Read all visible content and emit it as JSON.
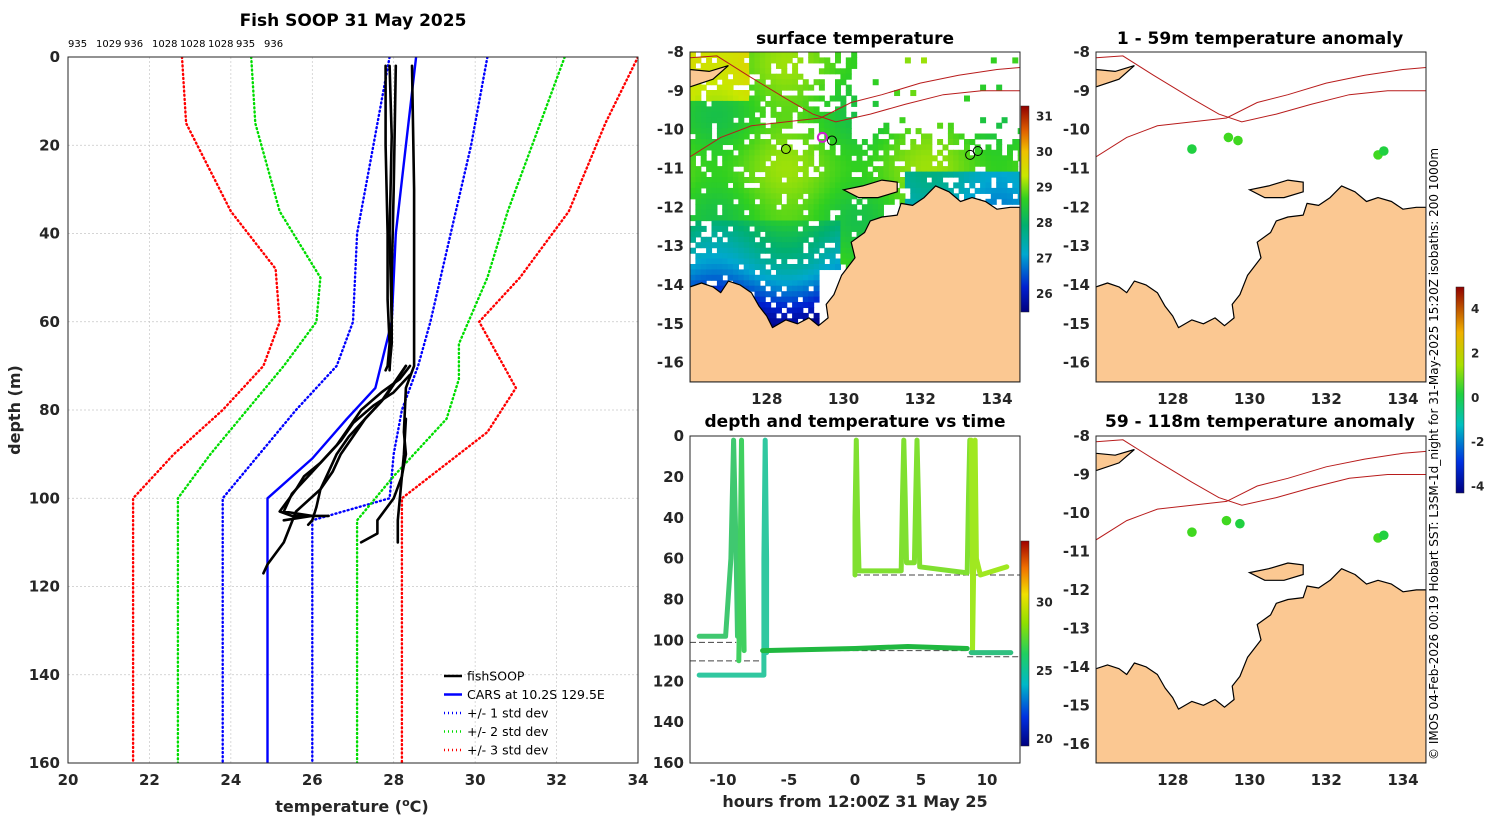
{
  "colors": {
    "black": "#000000",
    "cars": "#0000ff",
    "sd1": "#0000ff",
    "sd2": "#00ee00",
    "sd3": "#ff0000",
    "land": "#fbc892",
    "isobath": "#b81c1c"
  },
  "credit": "© IMOS 04-Feb-2026 00:19 Hobart SST: L3SM-1d_night for 31-May-2025 15:20Z isobaths: 200  1000m",
  "chart_data": [
    {
      "type": "line",
      "id": "profile",
      "title": "Fish SOOP 31 May 2025",
      "xlabel": "temperature (°C)",
      "ylabel": "depth (m)",
      "xlim": [
        20,
        34
      ],
      "ylim": [
        160,
        0
      ],
      "xticks": [
        "20",
        "22",
        "24",
        "26",
        "28",
        "30",
        "32",
        "34"
      ],
      "yticks": [
        "0",
        "20",
        "40",
        "60",
        "80",
        "100",
        "120",
        "140",
        "160"
      ],
      "top_labels": [
        "935",
        "1029",
        "936",
        "1028",
        "1028",
        "1028",
        "935",
        "936"
      ],
      "legend": [
        "fishSOOP",
        "CARS at 10.2S 129.5E",
        "+/- 1 std dev",
        "+/- 2 std dev",
        "+/- 3 std dev"
      ],
      "series": [
        {
          "name": "CARS",
          "style": "solid",
          "color": "#0000ff",
          "x": [
            28.55,
            28.3,
            28.05,
            27.95,
            27.55,
            26.85,
            26.0,
            24.9,
            24.9
          ],
          "y": [
            0,
            20,
            40,
            60,
            75,
            82,
            91,
            100,
            160
          ]
        },
        {
          "name": "-1",
          "style": "dot",
          "color": "#0000ff",
          "x": [
            27.9,
            27.5,
            27.1,
            27.0,
            26.6,
            25.6,
            24.7,
            23.8,
            23.8
          ],
          "y": [
            0,
            20,
            40,
            60,
            70,
            80,
            90,
            100,
            160
          ]
        },
        {
          "name": "+1",
          "style": "dot",
          "color": "#0000ff",
          "x": [
            30.3,
            29.9,
            29.4,
            28.9,
            28.6,
            28.2,
            28.0,
            27.9,
            26.0,
            26.0
          ],
          "y": [
            0,
            20,
            40,
            60,
            70,
            80,
            90,
            100,
            105,
            160
          ]
        },
        {
          "name": "-2",
          "style": "dot",
          "color": "#00dd00",
          "x": [
            24.5,
            24.6,
            25.2,
            26.2,
            26.1,
            25.3,
            24.4,
            23.5,
            22.7,
            22.7
          ],
          "y": [
            0,
            15,
            35,
            50,
            60,
            70,
            80,
            90,
            100,
            160
          ]
        },
        {
          "name": "+2",
          "style": "dot",
          "color": "#00dd00",
          "x": [
            32.2,
            31.6,
            30.8,
            30.3,
            29.6,
            29.6,
            29.3,
            28.0,
            27.1,
            27.1
          ],
          "y": [
            0,
            15,
            35,
            50,
            65,
            73,
            82,
            95,
            105,
            160
          ]
        },
        {
          "name": "-3",
          "style": "dot",
          "color": "#ff0000",
          "x": [
            22.8,
            22.9,
            24.0,
            25.1,
            25.2,
            24.8,
            23.8,
            22.6,
            21.6,
            21.6
          ],
          "y": [
            0,
            15,
            35,
            48,
            60,
            70,
            80,
            90,
            100,
            160
          ]
        },
        {
          "name": "+3",
          "style": "dot",
          "color": "#ff0000",
          "x": [
            34.0,
            33.2,
            32.3,
            31.1,
            30.1,
            31.0,
            30.3,
            28.2,
            28.2
          ],
          "y": [
            0,
            15,
            35,
            50,
            60,
            75,
            85,
            100,
            160
          ]
        },
        {
          "name": "fishSOOP A",
          "style": "thick",
          "color": "#000000",
          "x": [
            27.8,
            27.8,
            27.85,
            27.85,
            27.9,
            27.85,
            27.8
          ],
          "y": [
            2,
            20,
            40,
            55,
            65,
            70,
            71
          ]
        },
        {
          "name": "fishSOOP B",
          "style": "thick",
          "color": "#000000",
          "x": [
            27.9,
            27.95,
            27.9,
            27.95,
            27.9
          ],
          "y": [
            2,
            18,
            40,
            60,
            71
          ]
        },
        {
          "name": "fishSOOP C",
          "style": "thick",
          "color": "#000000",
          "x": [
            28.05,
            28.0,
            27.95,
            27.95,
            27.9
          ],
          "y": [
            2,
            30,
            50,
            65,
            70
          ]
        },
        {
          "name": "fishSOOP D",
          "style": "thick",
          "color": "#000000",
          "x": [
            28.45,
            28.5,
            28.5,
            28.5,
            28.3,
            28.25,
            28.3,
            28.2,
            28.1,
            28.1
          ],
          "y": [
            2,
            30,
            60,
            70,
            75,
            85,
            90,
            95,
            105,
            110
          ]
        },
        {
          "name": "fishSOOP E",
          "style": "thick",
          "color": "#000000",
          "x": [
            28.4,
            28.15,
            27.7,
            27.2,
            26.9,
            26.6,
            26.2,
            25.8,
            25.6,
            25.2,
            25.5,
            26.0,
            25.3
          ],
          "y": [
            70,
            73,
            76,
            80,
            84,
            88,
            92,
            95,
            98,
            103,
            104,
            104,
            105
          ]
        },
        {
          "name": "fishSOOP F",
          "style": "thick",
          "color": "#000000",
          "x": [
            28.4,
            28.0,
            27.5,
            27.0,
            26.7,
            26.3,
            25.9,
            25.5,
            25.3,
            26.0,
            26.4
          ],
          "y": [
            72,
            76,
            79,
            83,
            87,
            91,
            95,
            99,
            103,
            104,
            104
          ]
        },
        {
          "name": "fishSOOP G",
          "style": "thick",
          "color": "#000000",
          "x": [
            28.3,
            27.8,
            27.3,
            26.9,
            26.6,
            26.4,
            26.2,
            26.1,
            26.0,
            25.9
          ],
          "y": [
            70,
            77,
            82,
            86,
            90,
            94,
            98,
            102,
            105,
            106
          ]
        },
        {
          "name": "fishSOOP H",
          "style": "thick",
          "color": "#000000",
          "x": [
            28.3,
            28.0,
            27.7,
            27.3,
            27.0,
            26.7,
            26.5,
            26.2,
            25.6,
            25.3,
            24.9,
            24.8
          ],
          "y": [
            70,
            74,
            78,
            82,
            86,
            90,
            94,
            98,
            103,
            110,
            115,
            117
          ]
        },
        {
          "name": "fishSOOP I",
          "style": "thick",
          "color": "#000000",
          "x": [
            28.3,
            28.25,
            28.2,
            28.0,
            27.6,
            27.6,
            27.2
          ],
          "y": [
            82,
            90,
            95,
            100,
            105,
            108,
            110
          ]
        }
      ]
    },
    {
      "type": "heatmap",
      "id": "sst",
      "title": "surface temperature",
      "xlim": [
        126,
        134.6
      ],
      "ylim": [
        -16.5,
        -8
      ],
      "xticks": [
        "128",
        "130",
        "132",
        "134"
      ],
      "yticks": [
        "-8",
        "-9",
        "-10",
        "-11",
        "-12",
        "-13",
        "-14",
        "-15",
        "-16"
      ],
      "colorbar": {
        "min": 25.5,
        "max": 31.3,
        "ticks": [
          "26",
          "27",
          "28",
          "29",
          "30",
          "31"
        ]
      }
    },
    {
      "type": "scatter",
      "id": "timeseries",
      "title": "depth and temperature vs time",
      "xlabel": "hours from 12:00Z 31 May 25",
      "xlim": [
        -12.5,
        12.5
      ],
      "ylim": [
        160,
        0
      ],
      "xticks": [
        "-10",
        "-5",
        "0",
        "5",
        "10"
      ],
      "yticks": [
        "0",
        "20",
        "40",
        "60",
        "80",
        "100",
        "120",
        "140",
        "160"
      ],
      "colorbar": {
        "min": 19.5,
        "max": 34.5,
        "ticks": [
          "20",
          "25",
          "30"
        ]
      }
    },
    {
      "type": "scatter",
      "id": "anom1",
      "title": "1 - 59m temperature anomaly",
      "xlim": [
        126,
        134.6
      ],
      "ylim": [
        -16.5,
        -8
      ],
      "xticks": [
        "128",
        "130",
        "132",
        "134"
      ],
      "yticks": [
        "-8",
        "-9",
        "-10",
        "-11",
        "-12",
        "-13",
        "-14",
        "-15",
        "-16"
      ],
      "colorbar": {
        "min": -4.3,
        "max": 5.0,
        "ticks": [
          "4",
          "2",
          "0",
          "-2",
          "-4"
        ]
      },
      "points": [
        {
          "lon": 128.5,
          "lat": -10.5,
          "anom": 0.3
        },
        {
          "lon": 129.45,
          "lat": -10.2,
          "anom": 0.4
        },
        {
          "lon": 129.7,
          "lat": -10.28,
          "anom": 0.4
        },
        {
          "lon": 133.35,
          "lat": -10.65,
          "anom": 0.4
        },
        {
          "lon": 133.5,
          "lat": -10.55,
          "anom": 0.3
        }
      ]
    },
    {
      "type": "scatter",
      "id": "anom2",
      "title": "59 - 118m temperature anomaly",
      "xlim": [
        126,
        134.6
      ],
      "ylim": [
        -16.5,
        -8
      ],
      "xticks": [
        "128",
        "130",
        "132",
        "134"
      ],
      "yticks": [
        "-8",
        "-9",
        "-10",
        "-11",
        "-12",
        "-13",
        "-14",
        "-15",
        "-16"
      ],
      "points": [
        {
          "lon": 128.5,
          "lat": -10.5,
          "anom": 0.5
        },
        {
          "lon": 129.4,
          "lat": -10.2,
          "anom": 0.4
        },
        {
          "lon": 129.75,
          "lat": -10.28,
          "anom": 0.3
        },
        {
          "lon": 133.35,
          "lat": -10.65,
          "anom": 0.4
        },
        {
          "lon": 133.5,
          "lat": -10.58,
          "anom": 0.3
        }
      ]
    }
  ]
}
